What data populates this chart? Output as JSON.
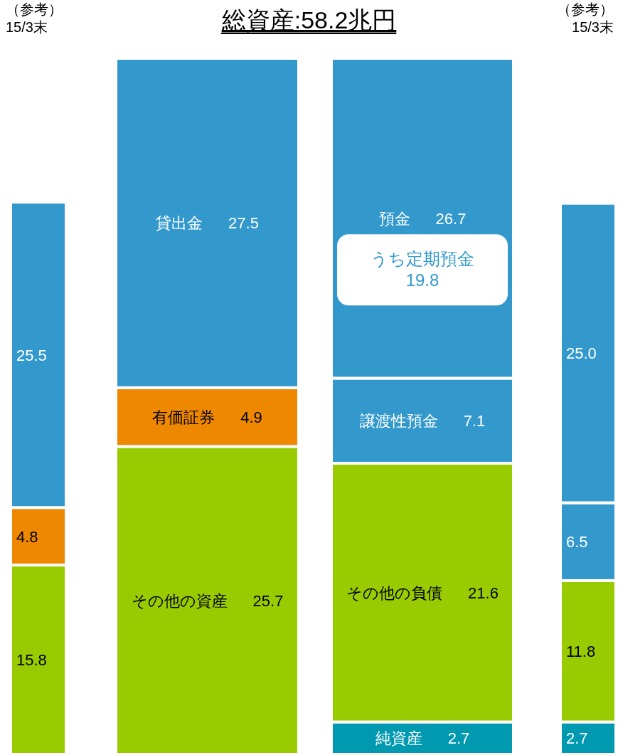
{
  "chart_data": {
    "type": "bar",
    "title": "総資産:58.2兆円",
    "stacked": true,
    "categories": [
      "（参考）\n15/3末",
      null,
      null,
      "（参考）\n15/3末"
    ],
    "series": [
      {
        "name": "その他の資産",
        "color": "#99cc00",
        "values": [
          15.8,
          25.7,
          null,
          null
        ],
        "value_labels": [
          "15.8",
          "25.7",
          null,
          null
        ]
      },
      {
        "name": "有価証券",
        "color": "#ee8800",
        "values": [
          4.8,
          4.9,
          null,
          null
        ],
        "value_labels": [
          "4.8",
          "4.9",
          null,
          null
        ]
      },
      {
        "name": "貸出金",
        "color": "#3399cc",
        "values": [
          25.5,
          27.5,
          null,
          null
        ],
        "value_labels": [
          "25.5",
          "27.5",
          null,
          null
        ]
      },
      {
        "name": "純資産",
        "color": "#0099b0",
        "values": [
          null,
          null,
          2.7,
          2.7
        ],
        "value_labels": [
          null,
          null,
          "2.7",
          "2.7"
        ]
      },
      {
        "name": "その他の負債",
        "color": "#99cc00",
        "values": [
          null,
          null,
          21.6,
          11.8
        ],
        "value_labels": [
          null,
          null,
          "21.6",
          "11.8"
        ]
      },
      {
        "name": "譲渡性預金",
        "color": "#3399cc",
        "values": [
          null,
          null,
          7.1,
          6.5
        ],
        "value_labels": [
          null,
          null,
          "7.1",
          "6.5"
        ]
      },
      {
        "name": "預金",
        "color": "#3399cc",
        "values": [
          null,
          null,
          26.7,
          25.0
        ],
        "value_labels": [
          null,
          null,
          "26.7",
          "25.0"
        ]
      }
    ],
    "annotations": [
      "うち定期預金\n19.8"
    ]
  }
}
